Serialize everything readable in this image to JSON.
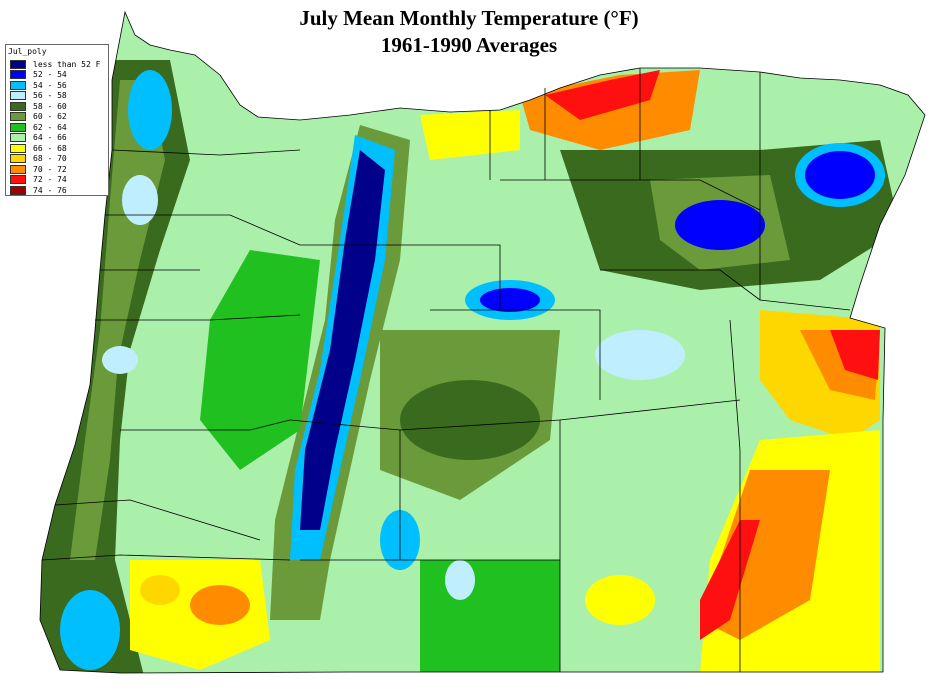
{
  "title": "July Mean Monthly Temperature (°F)",
  "subtitle": "1961-1990 Averages",
  "legend": {
    "title": "Jul_poly",
    "items": [
      {
        "label": "less than 52 F",
        "color": "#00008b"
      },
      {
        "label": "52 - 54",
        "color": "#0000ff"
      },
      {
        "label": "54 - 56",
        "color": "#00bfff"
      },
      {
        "label": "56 - 58",
        "color": "#bfefff"
      },
      {
        "label": "58 - 60",
        "color": "#3a6a1e"
      },
      {
        "label": "60 - 62",
        "color": "#6a9a3a"
      },
      {
        "label": "62 - 64",
        "color": "#20c020"
      },
      {
        "label": "64 - 66",
        "color": "#aaf0aa"
      },
      {
        "label": "66 - 68",
        "color": "#ffff00"
      },
      {
        "label": "68 - 70",
        "color": "#ffd700"
      },
      {
        "label": "70 - 72",
        "color": "#ff8c00"
      },
      {
        "label": "72 - 74",
        "color": "#ff1010"
      },
      {
        "label": "74 - 76",
        "color": "#a00000"
      }
    ]
  }
}
